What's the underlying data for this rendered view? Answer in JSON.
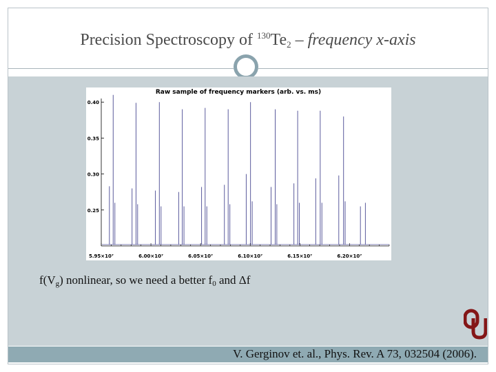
{
  "slide": {
    "title_main": "Precision Spectroscopy of ",
    "title_isotope": "130",
    "title_element": "Te",
    "title_sub": "2",
    "title_dash": " – ",
    "title_italic": "frequency x-axis",
    "note_prefix": "f(V",
    "note_sub": "g",
    "note_rest": ") nonlinear, so we need a better f",
    "note_sub2": "0",
    "note_end": " and Δf",
    "citation": "V. Gerginov et. al., Phys. Rev. A 73, 032504 (2006).",
    "logo": "oklahoma-logo-icon"
  },
  "colors": {
    "accent": "#8faab3",
    "panel": "#c8d2d6",
    "trace": "#5a5a9c",
    "logo": "#841617"
  },
  "chart_data": {
    "type": "line",
    "title": "Raw sample of frequency markers (arb. vs. ms)",
    "xlim": [
      59500000,
      62400000
    ],
    "ylim": [
      0.2,
      0.405
    ],
    "x_ticks": [
      59500000,
      60000000,
      60500000,
      61000000,
      61500000,
      62000000
    ],
    "x_tick_labels": [
      "5.95×10⁷",
      "6.00×10⁷",
      "6.05×10⁷",
      "6.10×10⁷",
      "6.15×10⁷",
      "6.20×10⁷"
    ],
    "y_ticks": [
      0.25,
      0.3,
      0.35,
      0.4
    ],
    "y_tick_labels": [
      "0.25",
      "0.30",
      "0.35",
      "0.40"
    ],
    "baseline": 0.2,
    "peaks": [
      {
        "x": 59582000,
        "y": 0.283
      },
      {
        "x": 59620000,
        "y": 0.41
      },
      {
        "x": 59637000,
        "y": 0.26
      },
      {
        "x": 59810000,
        "y": 0.28
      },
      {
        "x": 59850000,
        "y": 0.399
      },
      {
        "x": 59866000,
        "y": 0.258
      },
      {
        "x": 60045000,
        "y": 0.277
      },
      {
        "x": 60085000,
        "y": 0.4
      },
      {
        "x": 60102000,
        "y": 0.255
      },
      {
        "x": 60280000,
        "y": 0.275
      },
      {
        "x": 60316000,
        "y": 0.39
      },
      {
        "x": 60333000,
        "y": 0.255
      },
      {
        "x": 60510000,
        "y": 0.282
      },
      {
        "x": 60546000,
        "y": 0.392
      },
      {
        "x": 60563000,
        "y": 0.255
      },
      {
        "x": 60740000,
        "y": 0.285
      },
      {
        "x": 60778000,
        "y": 0.39
      },
      {
        "x": 60795000,
        "y": 0.258
      },
      {
        "x": 60960000,
        "y": 0.3
      },
      {
        "x": 61003000,
        "y": 0.4
      },
      {
        "x": 61020000,
        "y": 0.262
      },
      {
        "x": 61210000,
        "y": 0.282
      },
      {
        "x": 61252000,
        "y": 0.39
      },
      {
        "x": 61268000,
        "y": 0.258
      },
      {
        "x": 61440000,
        "y": 0.287
      },
      {
        "x": 61478000,
        "y": 0.388
      },
      {
        "x": 61495000,
        "y": 0.26
      },
      {
        "x": 61660000,
        "y": 0.294
      },
      {
        "x": 61705000,
        "y": 0.388
      },
      {
        "x": 61722000,
        "y": 0.26
      },
      {
        "x": 61892000,
        "y": 0.298
      },
      {
        "x": 61940000,
        "y": 0.38
      },
      {
        "x": 61956000,
        "y": 0.262
      },
      {
        "x": 62110000,
        "y": 0.255
      },
      {
        "x": 62160000,
        "y": 0.26
      }
    ]
  }
}
